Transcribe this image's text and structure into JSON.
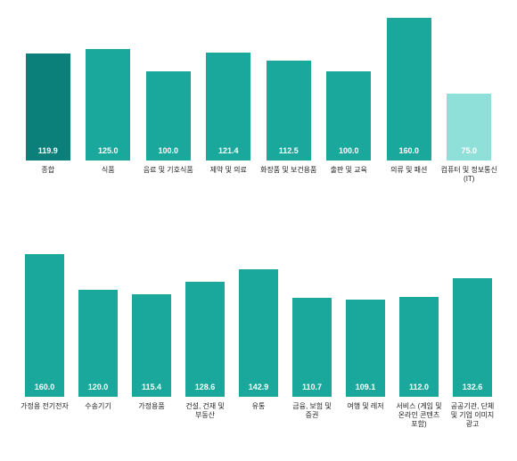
{
  "top_chart": {
    "type": "bar",
    "ymax": 170,
    "value_fontsize": 9,
    "label_fontsize": 8,
    "label_color": "#222222",
    "background_color": "#ffffff",
    "bar_width_pct": 74,
    "bars": [
      {
        "label": "종합",
        "value": 119.9,
        "color": "#0b7f7a",
        "value_text": "119.9",
        "bold": true
      },
      {
        "label": "식품",
        "value": 125.0,
        "color": "#1aa79c",
        "value_text": "125.0",
        "bold": false
      },
      {
        "label": "음료 및 기호식품",
        "value": 100.0,
        "color": "#1aa79c",
        "value_text": "100.0",
        "bold": false
      },
      {
        "label": "제약 및 의료",
        "value": 121.4,
        "color": "#1aa79c",
        "value_text": "121.4",
        "bold": false
      },
      {
        "label": "화장품 및 보건용품",
        "value": 112.5,
        "color": "#1aa79c",
        "value_text": "112.5",
        "bold": false
      },
      {
        "label": "출판 및 교육",
        "value": 100.0,
        "color": "#1aa79c",
        "value_text": "100.0",
        "bold": false
      },
      {
        "label": "의류 및 패션",
        "value": 160.0,
        "color": "#1aa79c",
        "value_text": "160.0",
        "bold": false
      },
      {
        "label": "컴퓨터 및 정보통신(IT)",
        "value": 75.0,
        "color": "#8fe0d8",
        "value_text": "75.0",
        "bold": false
      }
    ]
  },
  "bottom_chart": {
    "type": "bar",
    "ymax": 170,
    "value_fontsize": 9,
    "label_fontsize": 8,
    "label_color": "#222222",
    "background_color": "#ffffff",
    "bar_width_pct": 74,
    "bars": [
      {
        "label": "가정용 전기전자",
        "value": 160.0,
        "color": "#1aa79c",
        "value_text": "160.0",
        "bold": false
      },
      {
        "label": "수송기기",
        "value": 120.0,
        "color": "#1aa79c",
        "value_text": "120.0",
        "bold": false
      },
      {
        "label": "가정용품",
        "value": 115.4,
        "color": "#1aa79c",
        "value_text": "115.4",
        "bold": false
      },
      {
        "label": "건설, 건재 및 부동산",
        "value": 128.6,
        "color": "#1aa79c",
        "value_text": "128.6",
        "bold": false
      },
      {
        "label": "유통",
        "value": 142.9,
        "color": "#1aa79c",
        "value_text": "142.9",
        "bold": false
      },
      {
        "label": "금융, 보험 및 증권",
        "value": 110.7,
        "color": "#1aa79c",
        "value_text": "110.7",
        "bold": false
      },
      {
        "label": "여행 및 레저",
        "value": 109.1,
        "color": "#1aa79c",
        "value_text": "109.1",
        "bold": false
      },
      {
        "label": "서비스 (게임 및 온라인 콘텐츠 포함)",
        "value": 112.0,
        "color": "#1aa79c",
        "value_text": "112.0",
        "bold": false
      },
      {
        "label": "공공기관, 단체 및 기업 이미지 광고",
        "value": 132.6,
        "color": "#1aa79c",
        "value_text": "132.6",
        "bold": false
      }
    ]
  }
}
